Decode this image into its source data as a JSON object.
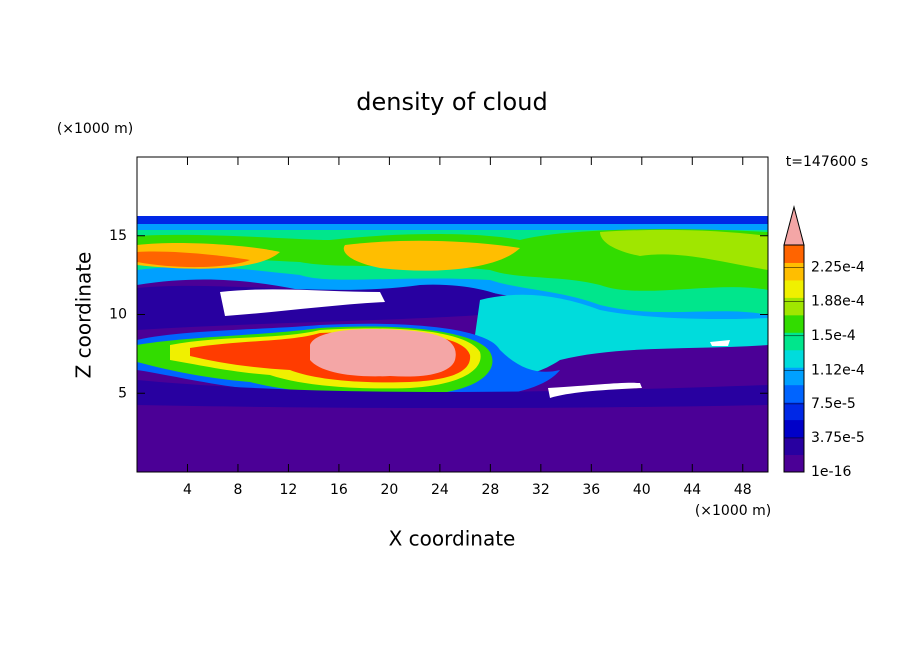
{
  "chart_data": {
    "type": "contour",
    "title": "density of cloud",
    "x_label": "X coordinate",
    "y_label": "Z coordinate",
    "x_unit": "(×1000 m)",
    "y_unit": "(×1000 m)",
    "annotation": "t=147600 s",
    "xlim": [
      0,
      50
    ],
    "xticks": [
      4,
      8,
      12,
      16,
      20,
      24,
      28,
      32,
      36,
      40,
      44,
      48
    ],
    "ylim": [
      0,
      20
    ],
    "yticks": [
      5,
      10,
      15
    ],
    "colorbar": {
      "lim": [
        0,
        0.00025
      ],
      "ticks": [
        {
          "value": 1e-16,
          "label": "1e-16"
        },
        {
          "value": 3.75e-05,
          "label": "3.75e-5"
        },
        {
          "value": 7.5e-05,
          "label": "7.5e-5"
        },
        {
          "value": 0.000112,
          "label": "1.12e-4"
        },
        {
          "value": 0.00015,
          "label": "1.5e-4"
        },
        {
          "value": 0.000188,
          "label": "1.88e-4"
        },
        {
          "value": 0.000225,
          "label": "2.25e-4"
        }
      ],
      "colors": [
        "#4b0096",
        "#2800a0",
        "#0000c8",
        "#0028e6",
        "#0064ff",
        "#00a0ff",
        "#00dcdc",
        "#00e68c",
        "#32dc00",
        "#a0e600",
        "#f0f000",
        "#ffbe00",
        "#ff6400"
      ],
      "extend_color": "#f4a6a6"
    }
  }
}
